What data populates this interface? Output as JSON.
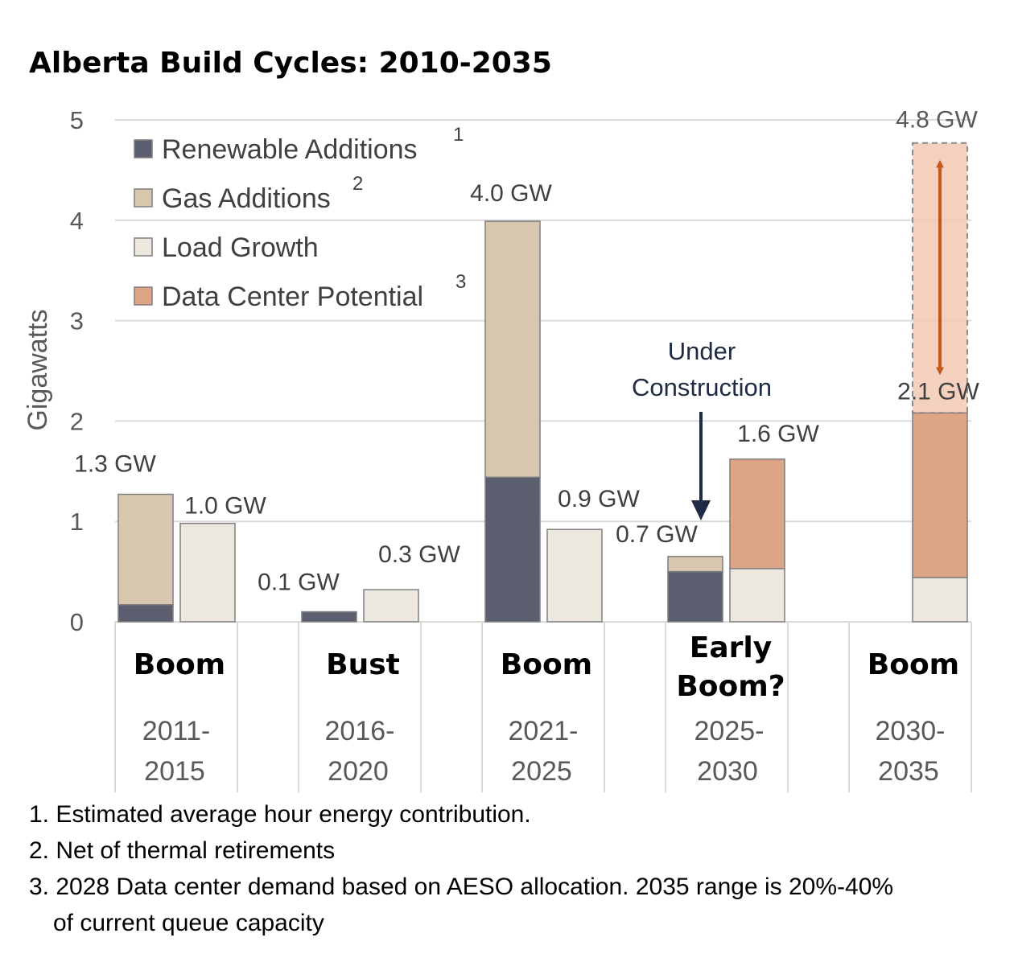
{
  "chart_data": {
    "type": "bar",
    "title": "Alberta Build Cycles: 2010-2035",
    "ylabel": "Gigawatts",
    "ylim": [
      0,
      5
    ],
    "yticks": [
      "0",
      "1",
      "2",
      "3",
      "4",
      "5"
    ],
    "grid": true,
    "legend_position": "top-left",
    "legend": [
      {
        "name": "Renewable Additions",
        "sup": "1",
        "color": "#5b5f70"
      },
      {
        "name": "Gas Additions",
        "sup": "2",
        "color": "#d8c7ae"
      },
      {
        "name": "Load Growth",
        "sup": "",
        "color": "#ede8df"
      },
      {
        "name": "Data Center Potential",
        "sup": "3",
        "color": "#dea486"
      }
    ],
    "groups": [
      {
        "phase": [
          "Boom"
        ],
        "period": [
          "2011-",
          "2015"
        ],
        "bars": [
          {
            "segments": [
              {
                "series": "Renewable Additions",
                "value": 0.17
              },
              {
                "series": "Gas Additions",
                "value": 1.1
              }
            ],
            "label": "1.3 GW"
          },
          {
            "segments": [
              {
                "series": "Load Growth",
                "value": 0.98
              }
            ],
            "label": "1.0 GW"
          }
        ]
      },
      {
        "phase": [
          "Bust"
        ],
        "period": [
          "2016-",
          "2020"
        ],
        "bars": [
          {
            "segments": [
              {
                "series": "Renewable Additions",
                "value": 0.1
              }
            ],
            "label": "0.1 GW"
          },
          {
            "segments": [
              {
                "series": "Load Growth",
                "value": 0.32
              }
            ],
            "label": "0.3 GW"
          }
        ]
      },
      {
        "phase": [
          "Boom"
        ],
        "period": [
          "2021-",
          "2025"
        ],
        "bars": [
          {
            "segments": [
              {
                "series": "Renewable Additions",
                "value": 1.44
              },
              {
                "series": "Gas Additions",
                "value": 2.55
              }
            ],
            "label": "4.0 GW"
          },
          {
            "segments": [
              {
                "series": "Load Growth",
                "value": 0.92
              }
            ],
            "label": "0.9 GW"
          }
        ]
      },
      {
        "phase": [
          "Early",
          "Boom?"
        ],
        "period": [
          "2025-",
          "2030"
        ],
        "bars": [
          {
            "segments": [
              {
                "series": "Renewable Additions",
                "value": 0.5
              },
              {
                "series": "Gas Additions",
                "value": 0.15
              }
            ],
            "label": "0.7 GW"
          },
          {
            "segments": [
              {
                "series": "Load Growth",
                "value": 0.53
              },
              {
                "series": "Data Center Potential",
                "value": 1.09
              }
            ],
            "label": "1.6 GW"
          }
        ]
      },
      {
        "phase": [
          "Boom"
        ],
        "period": [
          "2030-",
          "2035"
        ],
        "bars": [
          {
            "segments": [
              {
                "series": "Load Growth",
                "value": 0.44
              },
              {
                "series": "Data Center Potential",
                "value": 1.64
              }
            ],
            "label": "2.1 GW",
            "range_max": 4.77,
            "range_label": "4.8 GW"
          }
        ]
      }
    ],
    "annotation": {
      "lines": [
        "Under",
        "Construction"
      ]
    }
  },
  "footnotes": [
    "1. Estimated average hour energy contribution.",
    "2. Net of thermal retirements",
    "3. 2028 Data center demand based on AESO allocation. 2035 range is 20%-40%",
    "of current queue capacity"
  ]
}
